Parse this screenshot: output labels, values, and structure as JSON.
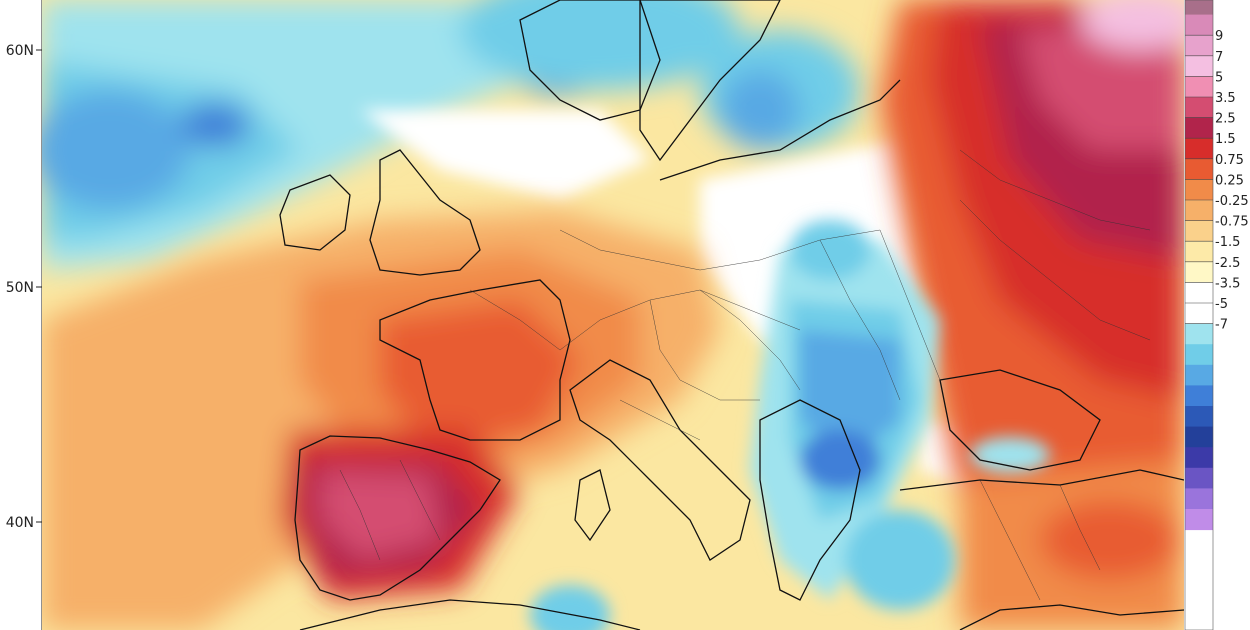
{
  "map": {
    "lat_labels": [
      "60N",
      "50N",
      "40N"
    ]
  },
  "colorbar": {
    "ticks": [
      "9",
      "7",
      "5",
      "3.5",
      "2.5",
      "1.5",
      "0.75",
      "0.25",
      "-0.25",
      "-0.75",
      "-1.5",
      "-2.5",
      "-3.5",
      "-5",
      "-7"
    ],
    "colors": [
      "#a86f8a",
      "#d98ab8",
      "#e7a2cc",
      "#f4bfe1",
      "#f08fb3",
      "#d44d71",
      "#b1244b",
      "#d72d2b",
      "#e85b32",
      "#f18b49",
      "#f6b069",
      "#fad18b",
      "#fdeaa8",
      "#fff8c6",
      "#ffffff",
      "#ffffff",
      "#9fe3ee",
      "#70cde8",
      "#58a9e4",
      "#3f7fd8",
      "#2c59b7",
      "#23409a",
      "#3c3aa8",
      "#6a55c4",
      "#9a74dc",
      "#c08ce8"
    ]
  }
}
